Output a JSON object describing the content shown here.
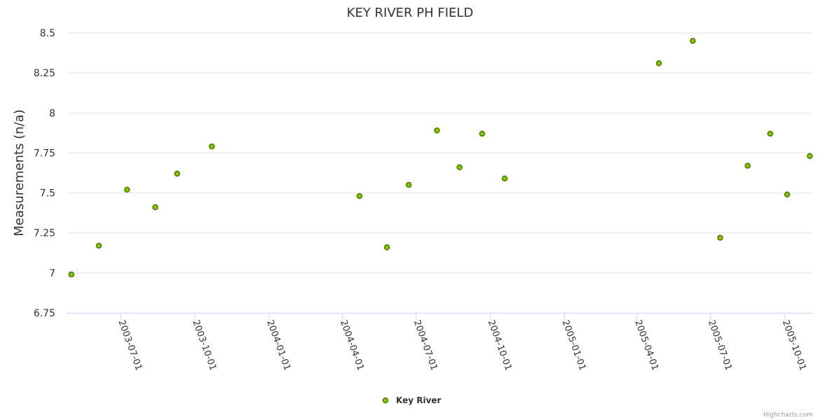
{
  "chart_data": {
    "type": "scatter",
    "title": "KEY RIVER PH FIELD",
    "ylabel": "Measurements (n/a)",
    "xlabel": "",
    "x_axis_type": "datetime",
    "x_range": [
      "2003-04-25",
      "2005-11-05"
    ],
    "ylim": [
      6.75,
      8.5
    ],
    "y_ticks": [
      "6.75",
      "7",
      "7.25",
      "7.5",
      "7.75",
      "8",
      "8.25",
      "8.5"
    ],
    "x_ticks": [
      "2003-07-01",
      "2003-10-01",
      "2004-01-01",
      "2004-04-01",
      "2004-07-01",
      "2004-10-01",
      "2005-01-01",
      "2005-04-01",
      "2005-07-01",
      "2005-10-01"
    ],
    "grid": "horizontal",
    "legend_position": "bottom-center",
    "series": [
      {
        "name": "Key River",
        "color": "#8bc400",
        "stroke": "#4b7a00",
        "points": [
          {
            "x": "2003-05-01",
            "y": 6.99
          },
          {
            "x": "2003-06-04",
            "y": 7.17
          },
          {
            "x": "2003-07-09",
            "y": 7.52
          },
          {
            "x": "2003-08-13",
            "y": 7.41
          },
          {
            "x": "2003-09-09",
            "y": 7.62
          },
          {
            "x": "2003-10-22",
            "y": 7.79
          },
          {
            "x": "2004-04-22",
            "y": 7.48
          },
          {
            "x": "2004-05-26",
            "y": 7.16
          },
          {
            "x": "2004-06-22",
            "y": 7.55
          },
          {
            "x": "2004-07-27",
            "y": 7.89
          },
          {
            "x": "2004-08-24",
            "y": 7.66
          },
          {
            "x": "2004-09-21",
            "y": 7.87
          },
          {
            "x": "2004-10-19",
            "y": 7.59
          },
          {
            "x": "2005-04-28",
            "y": 8.31
          },
          {
            "x": "2005-06-09",
            "y": 8.45
          },
          {
            "x": "2005-07-13",
            "y": 7.22
          },
          {
            "x": "2005-08-16",
            "y": 7.67
          },
          {
            "x": "2005-09-13",
            "y": 7.87
          },
          {
            "x": "2005-10-04",
            "y": 7.49
          },
          {
            "x": "2005-11-01",
            "y": 7.73
          }
        ]
      }
    ],
    "credits": "Highcharts.com"
  }
}
